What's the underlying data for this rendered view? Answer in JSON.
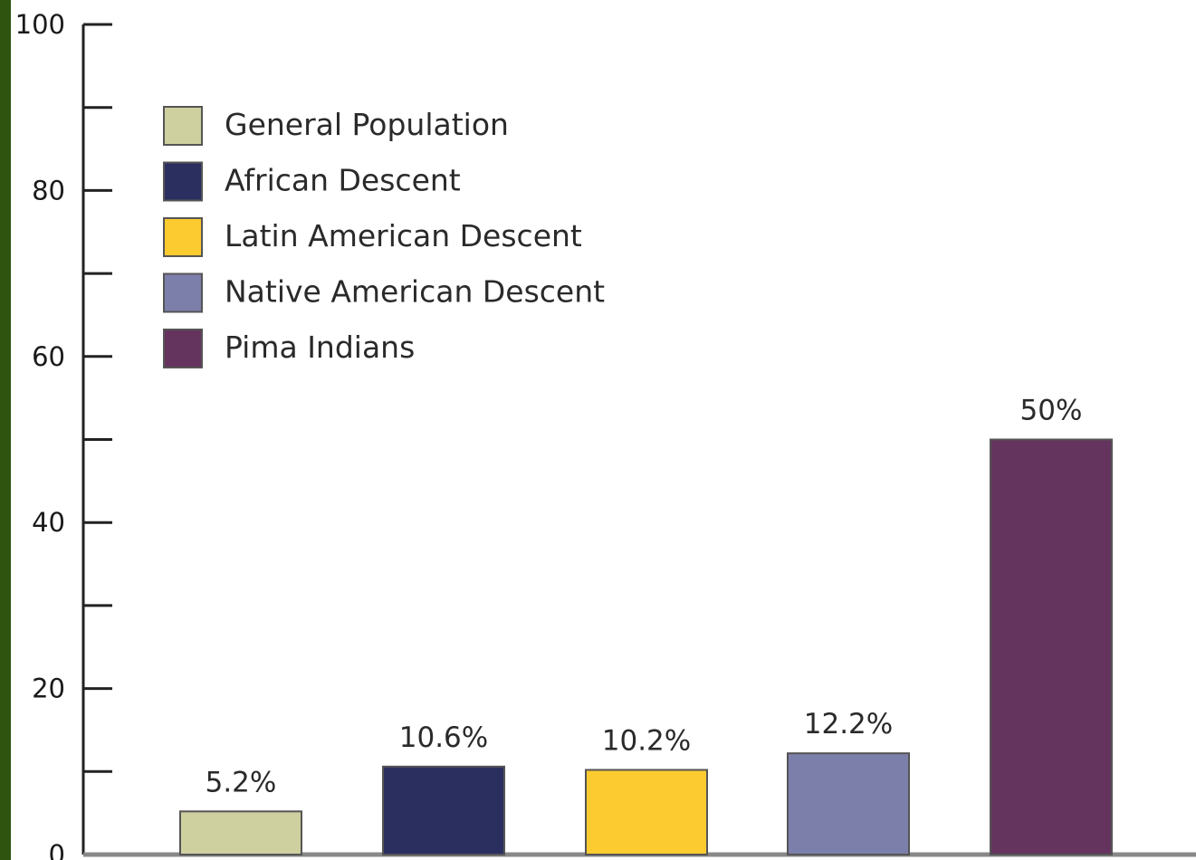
{
  "chart_data": {
    "type": "bar",
    "categories": [
      "General Population",
      "African Descent",
      "Latin American Descent",
      "Native American Descent",
      "Pima Indians"
    ],
    "values": [
      5.2,
      10.6,
      10.2,
      12.2,
      50
    ],
    "data_labels": [
      "5.2%",
      "10.6%",
      "10.2%",
      "12.2%",
      "50%"
    ],
    "colors": [
      "#cfd0a0",
      "#2b2f60",
      "#fccb30",
      "#7d7fab",
      "#64345f"
    ],
    "ylim": [
      0,
      100
    ],
    "y_ticks": [
      0,
      20,
      40,
      60,
      80,
      100
    ],
    "y_tick_labels": [
      "0",
      "20",
      "40",
      "60",
      "80",
      "100"
    ],
    "y_minor_ticks": [
      10,
      30,
      50,
      70,
      90
    ],
    "legend": {
      "position": "top-left",
      "entries": [
        "General Population",
        "African Descent",
        "Latin American Descent",
        "Native American Descent",
        "Pima Indians"
      ]
    },
    "title": "",
    "xlabel": "",
    "ylabel": "",
    "grid": false
  },
  "theme": {
    "side_strip_color": "#2f5410",
    "axis_color": "#222222",
    "baseline_color": "#888888"
  }
}
